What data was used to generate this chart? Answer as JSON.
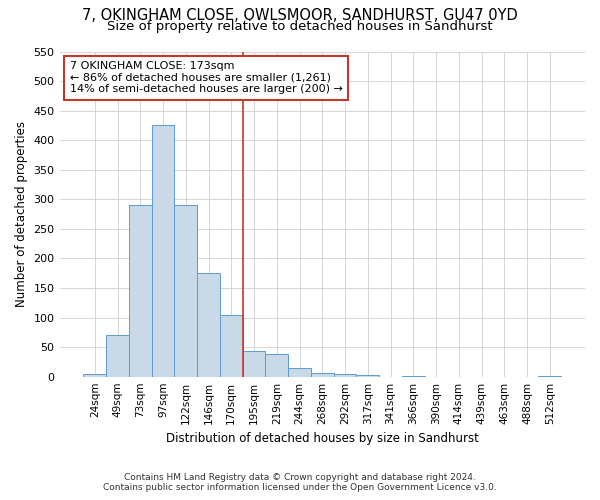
{
  "title1": "7, OKINGHAM CLOSE, OWLSMOOR, SANDHURST, GU47 0YD",
  "title2": "Size of property relative to detached houses in Sandhurst",
  "xlabel": "Distribution of detached houses by size in Sandhurst",
  "ylabel": "Number of detached properties",
  "categories": [
    "24sqm",
    "49sqm",
    "73sqm",
    "97sqm",
    "122sqm",
    "146sqm",
    "170sqm",
    "195sqm",
    "219sqm",
    "244sqm",
    "268sqm",
    "292sqm",
    "317sqm",
    "341sqm",
    "366sqm",
    "390sqm",
    "414sqm",
    "439sqm",
    "463sqm",
    "488sqm",
    "512sqm"
  ],
  "values": [
    5,
    70,
    290,
    425,
    290,
    175,
    105,
    43,
    38,
    15,
    7,
    5,
    2,
    0,
    1,
    0,
    0,
    0,
    0,
    0,
    1
  ],
  "bar_color": "#c9d9e8",
  "bar_edge_color": "#5b9bd5",
  "annotation_title": "7 OKINGHAM CLOSE: 173sqm",
  "annotation_line1": "← 86% of detached houses are smaller (1,261)",
  "annotation_line2": "14% of semi-detached houses are larger (200) →",
  "vline_color": "#c0392b",
  "ylim": [
    0,
    550
  ],
  "yticks": [
    0,
    50,
    100,
    150,
    200,
    250,
    300,
    350,
    400,
    450,
    500,
    550
  ],
  "footnote1": "Contains HM Land Registry data © Crown copyright and database right 2024.",
  "footnote2": "Contains public sector information licensed under the Open Government Licence v3.0.",
  "background_color": "#ffffff",
  "grid_color": "#d0d0d0",
  "title1_fontsize": 10.5,
  "title2_fontsize": 9.5
}
